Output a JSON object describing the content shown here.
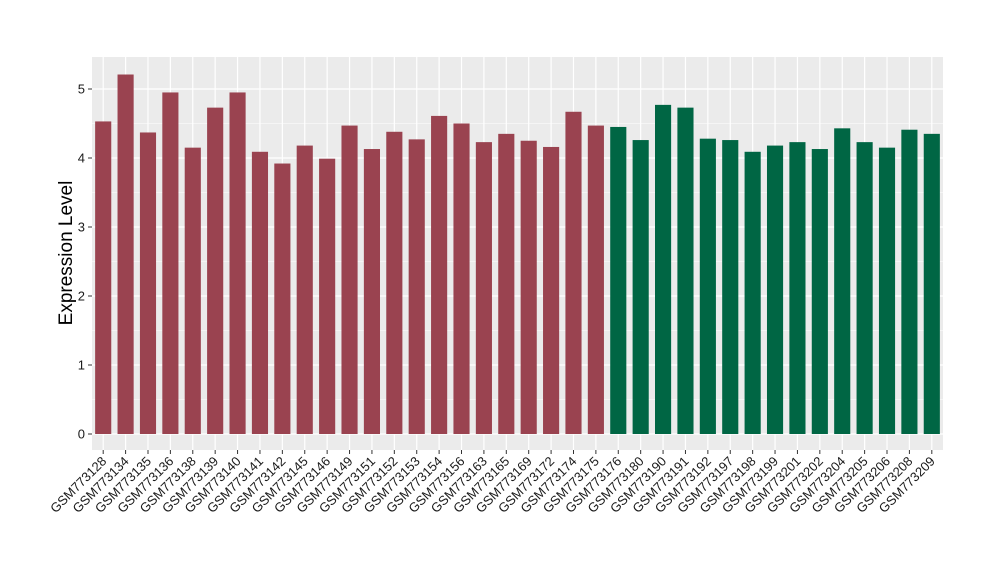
{
  "chart_data": {
    "type": "bar",
    "title": "",
    "xlabel": "",
    "ylabel": "Expression Level",
    "ylim": [
      0,
      5.45
    ],
    "yticks": [
      0,
      1,
      2,
      3,
      4,
      5
    ],
    "grid": true,
    "legend": "none",
    "colors": {
      "group_a": "#9a4350",
      "group_b": "#006644",
      "panel": "#ebebeb",
      "grid": "#ffffff"
    },
    "categories": [
      "GSM773128",
      "GSM773134",
      "GSM773135",
      "GSM773136",
      "GSM773138",
      "GSM773139",
      "GSM773140",
      "GSM773141",
      "GSM773142",
      "GSM773145",
      "GSM773146",
      "GSM773149",
      "GSM773151",
      "GSM773152",
      "GSM773153",
      "GSM773154",
      "GSM773156",
      "GSM773163",
      "GSM773165",
      "GSM773169",
      "GSM773172",
      "GSM773174",
      "GSM773175",
      "GSM773176",
      "GSM773180",
      "GSM773190",
      "GSM773191",
      "GSM773192",
      "GSM773197",
      "GSM773198",
      "GSM773199",
      "GSM773201",
      "GSM773202",
      "GSM773204",
      "GSM773205",
      "GSM773206",
      "GSM773208",
      "GSM773209"
    ],
    "values": [
      4.53,
      5.21,
      4.37,
      4.95,
      4.15,
      4.73,
      4.95,
      4.09,
      3.92,
      4.18,
      3.99,
      4.47,
      4.13,
      4.38,
      4.27,
      4.61,
      4.5,
      4.23,
      4.35,
      4.25,
      4.16,
      4.67,
      4.47,
      4.45,
      4.26,
      4.77,
      4.73,
      4.28,
      4.26,
      4.09,
      4.18,
      4.23,
      4.13,
      4.43,
      4.23,
      4.15,
      4.41,
      4.35
    ],
    "groups": [
      "a",
      "a",
      "a",
      "a",
      "a",
      "a",
      "a",
      "a",
      "a",
      "a",
      "a",
      "a",
      "a",
      "a",
      "a",
      "a",
      "a",
      "a",
      "a",
      "a",
      "a",
      "a",
      "a",
      "b",
      "b",
      "b",
      "b",
      "b",
      "b",
      "b",
      "b",
      "b",
      "b",
      "b",
      "b",
      "b",
      "b",
      "b"
    ]
  }
}
